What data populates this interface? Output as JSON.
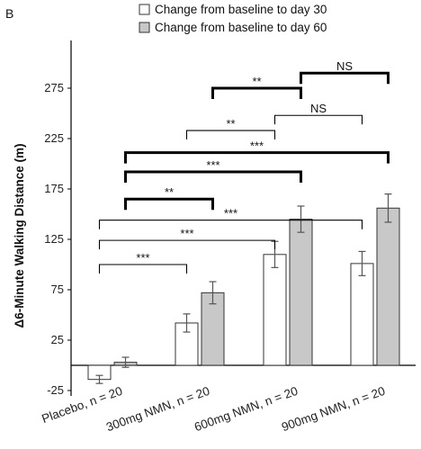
{
  "panel_label": "B",
  "chart_data": {
    "type": "bar",
    "ylabel": "Δ6-Minute Walking Distance (m)",
    "ylim": [
      -25,
      300
    ],
    "yticks": [
      -25,
      25,
      75,
      125,
      175,
      225,
      275
    ],
    "categories": [
      "Placebo, n = 20",
      "300mg NMN, n = 20",
      "600mg NMN, n = 20",
      "900mg NMN, n = 20"
    ],
    "series": [
      {
        "name": "Change from baseline to day 30",
        "fill": "#ffffff",
        "values": [
          -14,
          42,
          110,
          101
        ],
        "errors": [
          4,
          9,
          13,
          12
        ]
      },
      {
        "name": "Change from baseline to day 60",
        "fill": "#c8c8c8",
        "values": [
          3,
          72,
          145,
          156
        ],
        "errors": [
          5,
          11,
          13,
          14
        ]
      }
    ],
    "comparisons": [
      {
        "label": "NS",
        "from": [
          2,
          1
        ],
        "to": [
          3,
          1
        ],
        "y": 290,
        "bold": true
      },
      {
        "label": "**",
        "from": [
          1,
          1
        ],
        "to": [
          2,
          1
        ],
        "y": 275,
        "bold": true
      },
      {
        "label": "NS",
        "from": [
          2,
          0
        ],
        "to": [
          3,
          0
        ],
        "y": 248,
        "bold": false
      },
      {
        "label": "**",
        "from": [
          1,
          0
        ],
        "to": [
          2,
          0
        ],
        "y": 233,
        "bold": false
      },
      {
        "label": "***",
        "from": [
          0,
          1
        ],
        "to": [
          3,
          1
        ],
        "y": 211,
        "bold": true
      },
      {
        "label": "***",
        "from": [
          0,
          1
        ],
        "to": [
          2,
          1
        ],
        "y": 192,
        "bold": true
      },
      {
        "label": "**",
        "from": [
          0,
          1
        ],
        "to": [
          1,
          1
        ],
        "y": 165,
        "bold": true
      },
      {
        "label": "***",
        "from": [
          0,
          0
        ],
        "to": [
          3,
          0
        ],
        "y": 144,
        "bold": false
      },
      {
        "label": "***",
        "from": [
          0,
          0
        ],
        "to": [
          2,
          0
        ],
        "y": 124,
        "bold": false
      },
      {
        "label": "***",
        "from": [
          0,
          0
        ],
        "to": [
          1,
          0
        ],
        "y": 100,
        "bold": false
      }
    ]
  }
}
